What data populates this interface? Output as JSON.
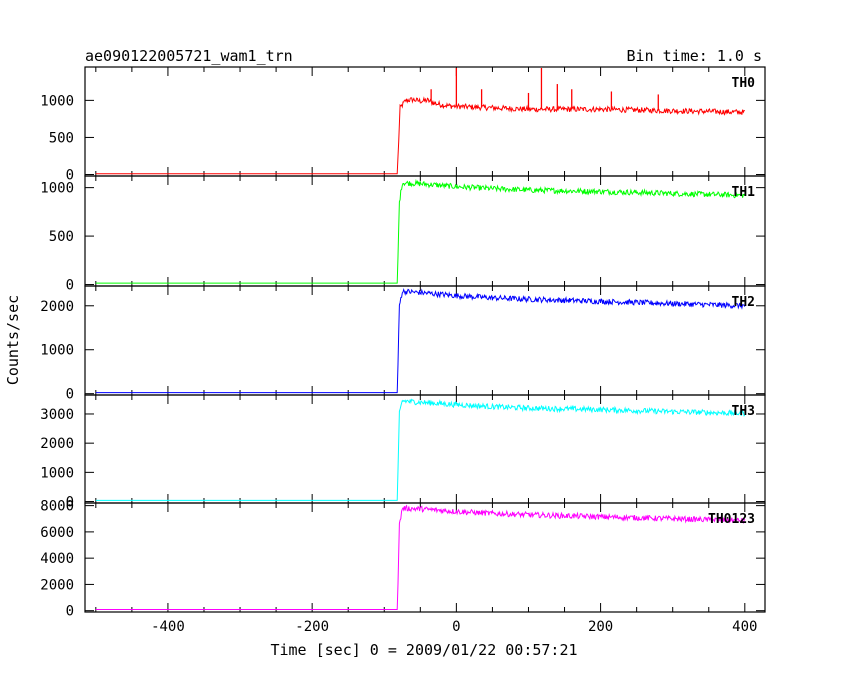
{
  "chart_data": {
    "type": "line",
    "title": "ae090122005721_wam1_trn",
    "subtitle": "Bin time: 1.0 s",
    "xlabel": "Time [sec] 0 = 2009/01/22 00:57:21",
    "ylabel": "Counts/sec",
    "xlim": [
      -515,
      428
    ],
    "xticks": [
      -400,
      -200,
      0,
      200,
      400
    ],
    "grid": false,
    "legend": "none",
    "step_time": -82,
    "panels": [
      {
        "name": "TH0",
        "color": "#ff0000",
        "ylim": [
          -20,
          1450
        ],
        "yticks": [
          0,
          500,
          1000
        ],
        "x": [
          -500,
          -82,
          -82,
          -78,
          -70,
          -60,
          -50,
          -40,
          -30,
          -20,
          -10,
          0,
          20,
          50,
          100,
          150,
          200,
          250,
          300,
          350,
          400
        ],
        "values": [
          10,
          10,
          10,
          900,
          1000,
          1010,
          990,
          1000,
          960,
          940,
          925,
          920,
          910,
          900,
          880,
          880,
          880,
          870,
          860,
          850,
          840
        ],
        "spikes": [
          {
            "x": 0,
            "y": 1450
          },
          {
            "x": 118,
            "y": 1450
          },
          {
            "x": -35,
            "y": 1150
          },
          {
            "x": 35,
            "y": 1150
          },
          {
            "x": 100,
            "y": 1100
          },
          {
            "x": 140,
            "y": 1220
          },
          {
            "x": 160,
            "y": 1150
          },
          {
            "x": 215,
            "y": 1120
          },
          {
            "x": 280,
            "y": 1080
          }
        ]
      },
      {
        "name": "TH1",
        "color": "#00ff00",
        "ylim": [
          -15,
          1120
        ],
        "yticks": [
          0,
          500,
          1000
        ],
        "x": [
          -500,
          -82,
          -82,
          -79,
          -75,
          -50,
          0,
          50,
          100,
          200,
          300,
          400
        ],
        "values": [
          15,
          15,
          15,
          850,
          1050,
          1040,
          1010,
          990,
          975,
          960,
          940,
          920
        ],
        "spikes": []
      },
      {
        "name": "TH2",
        "color": "#0000ff",
        "ylim": [
          -30,
          2450
        ],
        "yticks": [
          0,
          1000,
          2000
        ],
        "x": [
          -500,
          -82,
          -82,
          -79,
          -75,
          -50,
          0,
          50,
          100,
          200,
          300,
          400
        ],
        "values": [
          25,
          25,
          25,
          2000,
          2330,
          2300,
          2230,
          2180,
          2150,
          2100,
          2050,
          2000
        ],
        "spikes": []
      },
      {
        "name": "TH3",
        "color": "#00ffff",
        "ylim": [
          -50,
          3650
        ],
        "yticks": [
          0,
          1000,
          2000,
          3000
        ],
        "x": [
          -500,
          -82,
          -82,
          -79,
          -75,
          -50,
          0,
          50,
          100,
          200,
          300,
          400
        ],
        "values": [
          40,
          40,
          40,
          3000,
          3450,
          3400,
          3320,
          3250,
          3200,
          3150,
          3080,
          3020
        ],
        "spikes": []
      },
      {
        "name": "TH0123",
        "color": "#ff00ff",
        "ylim": [
          -100,
          8200
        ],
        "yticks": [
          0,
          2000,
          4000,
          6000,
          8000
        ],
        "x": [
          -500,
          -82,
          -82,
          -79,
          -75,
          -50,
          0,
          50,
          100,
          200,
          300,
          400
        ],
        "values": [
          90,
          90,
          90,
          6500,
          7800,
          7750,
          7550,
          7400,
          7300,
          7150,
          7000,
          6850
        ],
        "spikes": []
      }
    ]
  }
}
